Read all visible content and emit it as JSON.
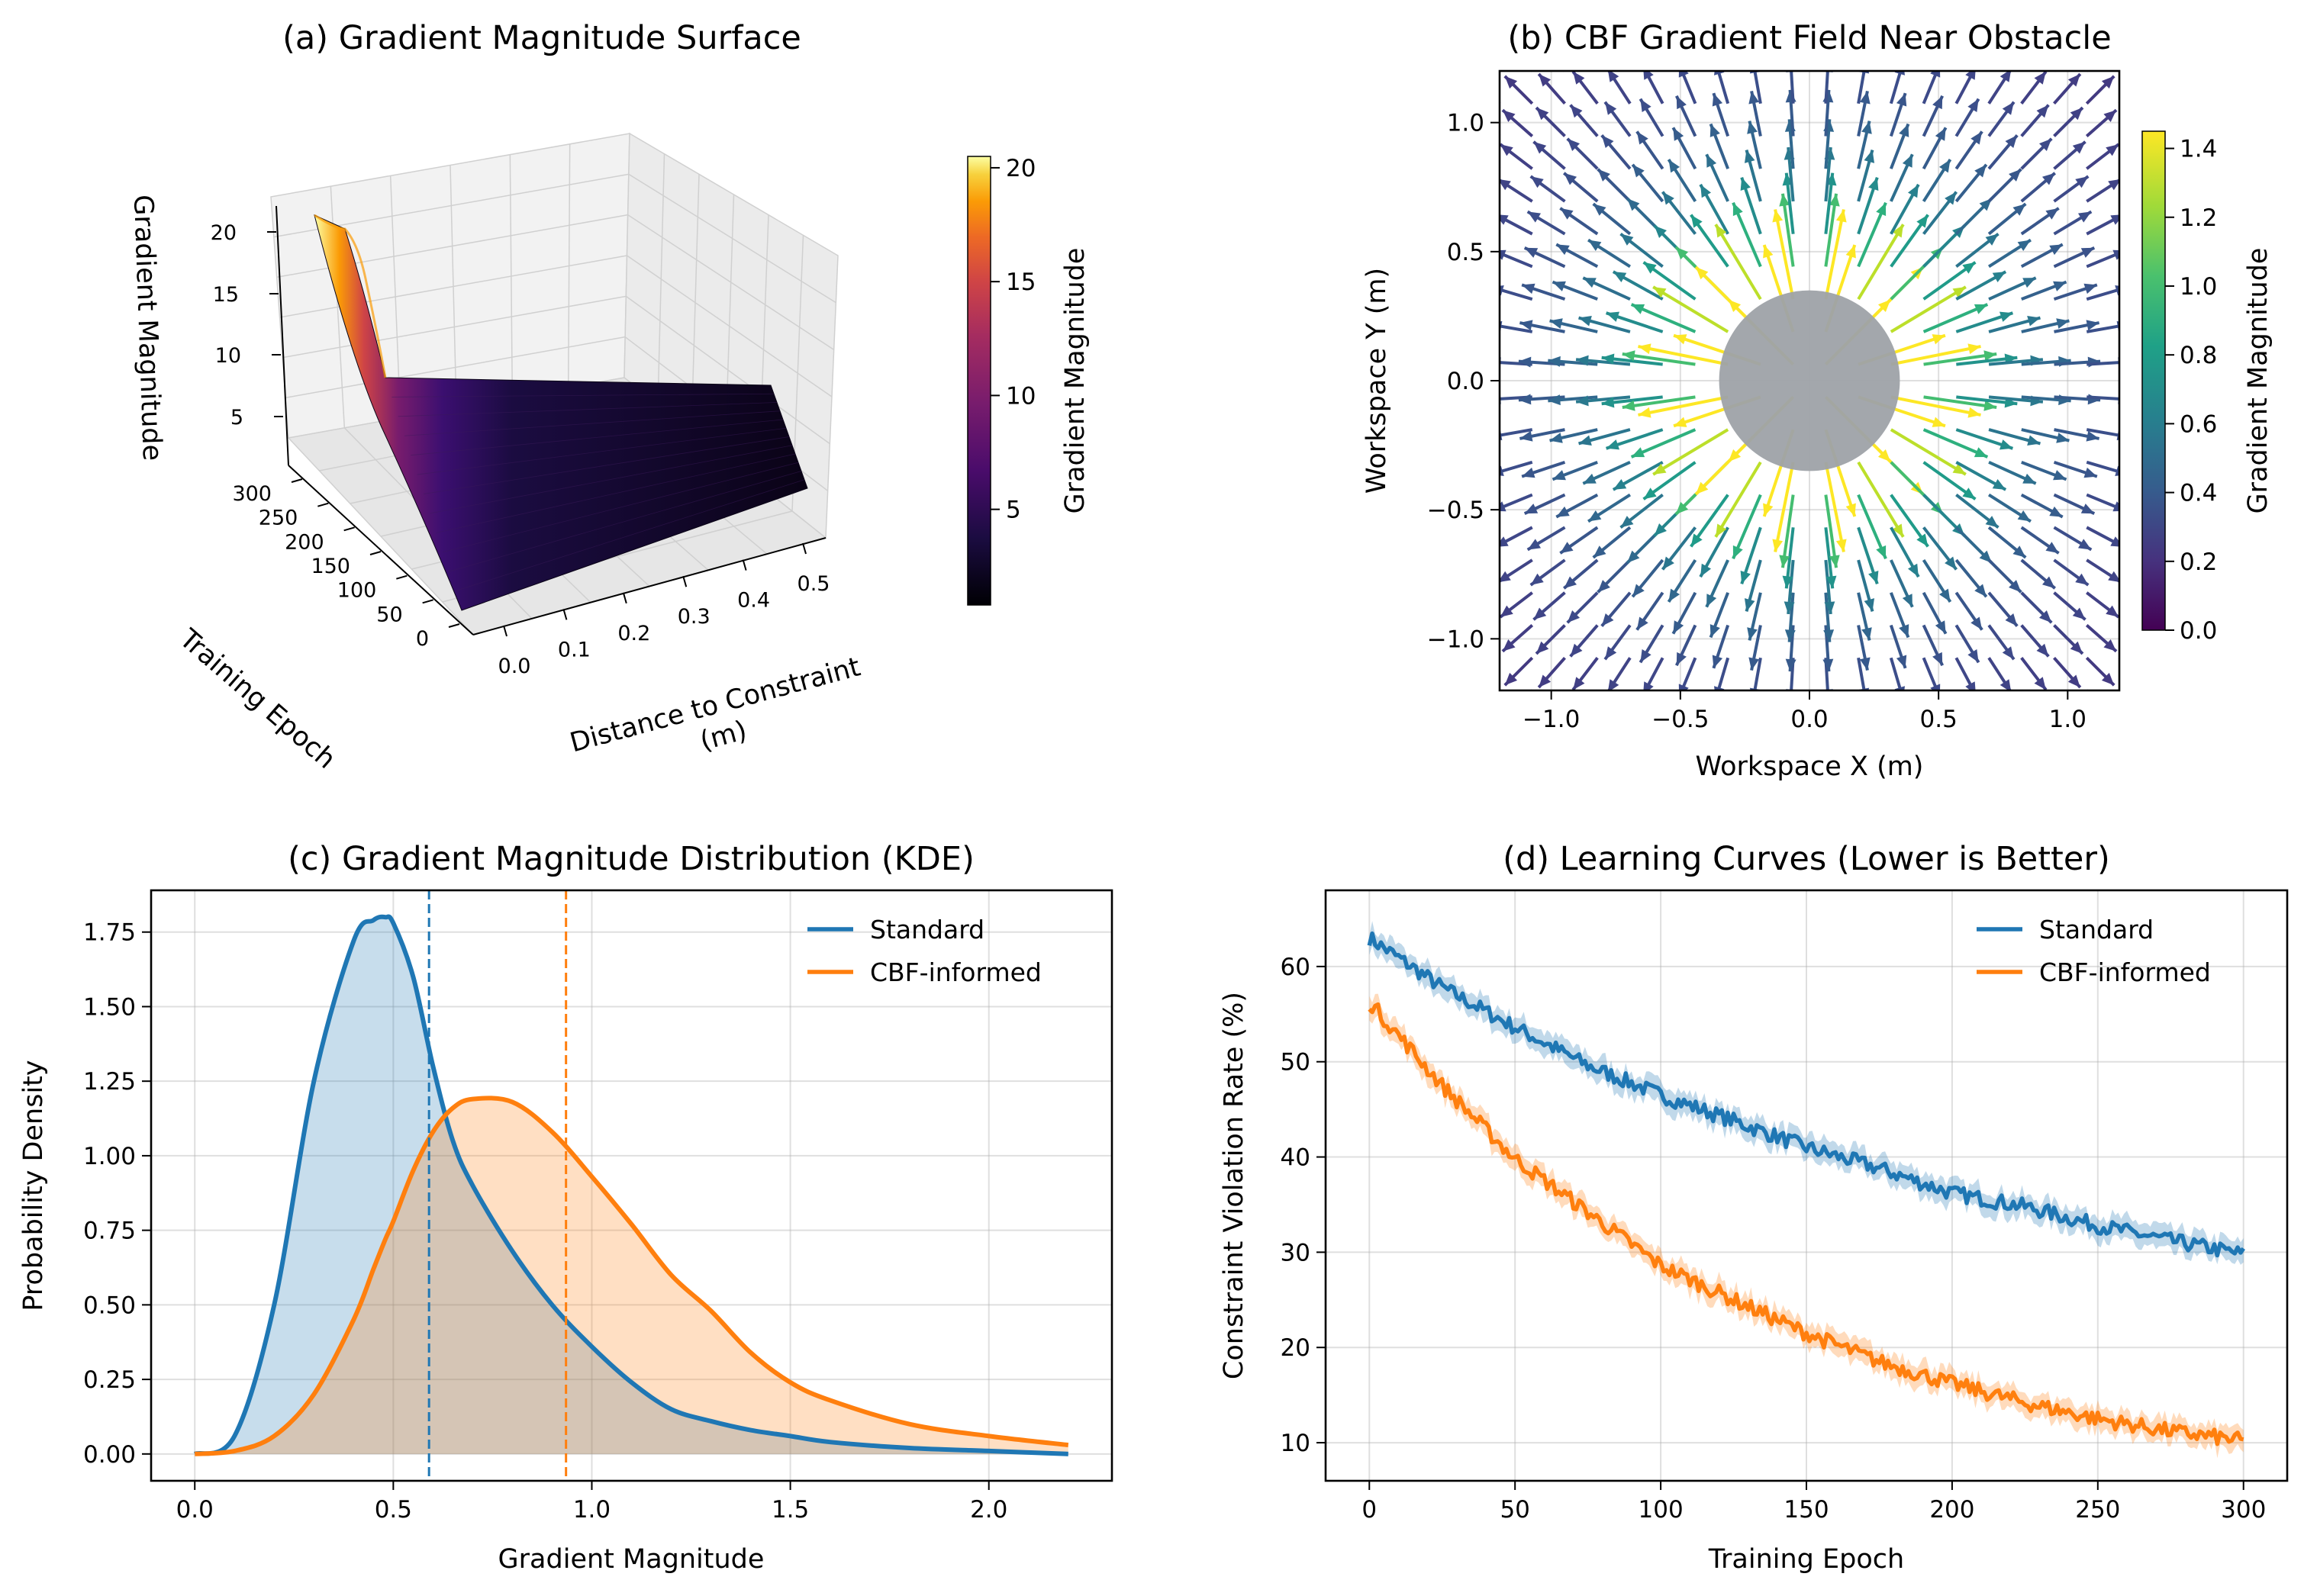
{
  "panels": {
    "a": {
      "title": "(a) Gradient Magnitude Surface",
      "xlabel": "Distance to Constraint\n(m)",
      "ylabel": "Training Epoch",
      "zlabel": "Gradient Magnitude",
      "colorbar_label": "Gradient Magnitude",
      "x_ticks": [
        "0.0",
        "0.1",
        "0.2",
        "0.3",
        "0.4",
        "0.5"
      ],
      "y_ticks": [
        "0",
        "50",
        "100",
        "150",
        "200",
        "250",
        "300"
      ],
      "z_ticks": [
        "5",
        "10",
        "15",
        "20"
      ],
      "colorbar_ticks": [
        "5",
        "10",
        "15",
        "20"
      ],
      "colormap": "inferno"
    },
    "b": {
      "title": "(b) CBF Gradient Field Near Obstacle",
      "xlabel": "Workspace X (m)",
      "ylabel": "Workspace Y (m)",
      "colorbar_label": "Gradient Magnitude",
      "x_ticks": [
        "−1.0",
        "−0.5",
        "0.0",
        "0.5",
        "1.0"
      ],
      "y_ticks": [
        "−1.0",
        "−0.5",
        "0.0",
        "0.5",
        "1.0"
      ],
      "colorbar_ticks": [
        "0.0",
        "0.2",
        "0.4",
        "0.6",
        "0.8",
        "1.0",
        "1.2",
        "1.4"
      ],
      "colormap": "viridis",
      "obstacle_color": "#9ea2a8"
    },
    "c": {
      "title": "(c) Gradient Magnitude Distribution (KDE)",
      "xlabel": "Gradient Magnitude",
      "ylabel": "Probability Density",
      "x_ticks": [
        "0.0",
        "0.5",
        "1.0",
        "1.5",
        "2.0"
      ],
      "y_ticks": [
        "0.00",
        "0.25",
        "0.50",
        "0.75",
        "1.00",
        "1.25",
        "1.50",
        "1.75"
      ],
      "legend": [
        "Standard",
        "CBF-informed"
      ]
    },
    "d": {
      "title": "(d) Learning Curves (Lower is Better)",
      "xlabel": "Training Epoch",
      "ylabel": "Constraint Violation Rate (%)",
      "x_ticks": [
        "0",
        "50",
        "100",
        "150",
        "200",
        "250",
        "300"
      ],
      "y_ticks": [
        "10",
        "20",
        "30",
        "40",
        "50",
        "60"
      ],
      "legend": [
        "Standard",
        "CBF-informed"
      ]
    }
  },
  "colors": {
    "standard": "#1f77b4",
    "cbf": "#ff7f0e"
  },
  "chart_data": [
    {
      "type": "heatmap",
      "title": "(a) Gradient Magnitude Surface",
      "x_range": [
        0.0,
        0.5
      ],
      "y_range": [
        0,
        300
      ],
      "z_range": [
        0.8,
        20.5
      ],
      "surface": "Gradient magnitude ~20 at distance 0.0 and epoch 300, decaying to ~1 by distance 0.15 for all epochs"
    },
    {
      "type": "scatter",
      "title": "(b) CBF Gradient Field Near Obstacle",
      "xlim": [
        -1.2,
        1.2
      ],
      "ylim": [
        -1.2,
        1.2
      ],
      "obstacle": {
        "center": [
          0,
          0
        ],
        "radius": 0.35
      },
      "colorbar_range": [
        0.0,
        1.45
      ]
    },
    {
      "type": "line",
      "title": "(c) Gradient Magnitude Distribution (KDE)",
      "xlim": [
        -0.11,
        2.31
      ],
      "ylim": [
        -0.09,
        1.89
      ],
      "x": [
        0.0,
        0.1,
        0.2,
        0.3,
        0.4,
        0.45,
        0.48,
        0.5,
        0.55,
        0.6,
        0.65,
        0.7,
        0.8,
        0.9,
        1.0,
        1.1,
        1.2,
        1.3,
        1.4,
        1.5,
        1.6,
        1.8,
        2.0,
        2.2
      ],
      "series": [
        {
          "name": "Standard",
          "values": [
            0.0,
            0.06,
            0.5,
            1.25,
            1.72,
            1.79,
            1.8,
            1.78,
            1.6,
            1.3,
            1.05,
            0.9,
            0.68,
            0.5,
            0.36,
            0.24,
            0.15,
            0.11,
            0.08,
            0.06,
            0.04,
            0.02,
            0.01,
            0.0
          ]
        },
        {
          "name": "CBF-informed",
          "values": [
            0.0,
            0.01,
            0.06,
            0.2,
            0.45,
            0.62,
            0.72,
            0.78,
            0.95,
            1.08,
            1.16,
            1.19,
            1.18,
            1.08,
            0.93,
            0.77,
            0.6,
            0.48,
            0.34,
            0.24,
            0.18,
            0.1,
            0.06,
            0.03
          ]
        }
      ],
      "vlines": [
        {
          "x": 0.59,
          "series": "Standard"
        },
        {
          "x": 0.935,
          "series": "CBF-informed"
        }
      ]
    },
    {
      "type": "line",
      "title": "(d) Learning Curves (Lower is Better)",
      "xlim": [
        -15,
        315
      ],
      "ylim": [
        6,
        68
      ],
      "x": [
        0,
        25,
        50,
        75,
        100,
        125,
        150,
        175,
        200,
        225,
        250,
        275,
        300
      ],
      "series": [
        {
          "name": "Standard",
          "values": [
            63,
            57.8,
            53.6,
            49.6,
            46.5,
            43.8,
            41,
            38.8,
            36.2,
            34.8,
            32.8,
            31.2,
            29.8
          ]
        },
        {
          "name": "CBF-informed",
          "values": [
            56.3,
            47.5,
            39.8,
            34.2,
            28.6,
            25,
            21.5,
            18.5,
            16.2,
            14.2,
            12.5,
            11.2,
            10.2
          ]
        }
      ],
      "band_halfwidth": 1.2
    }
  ]
}
